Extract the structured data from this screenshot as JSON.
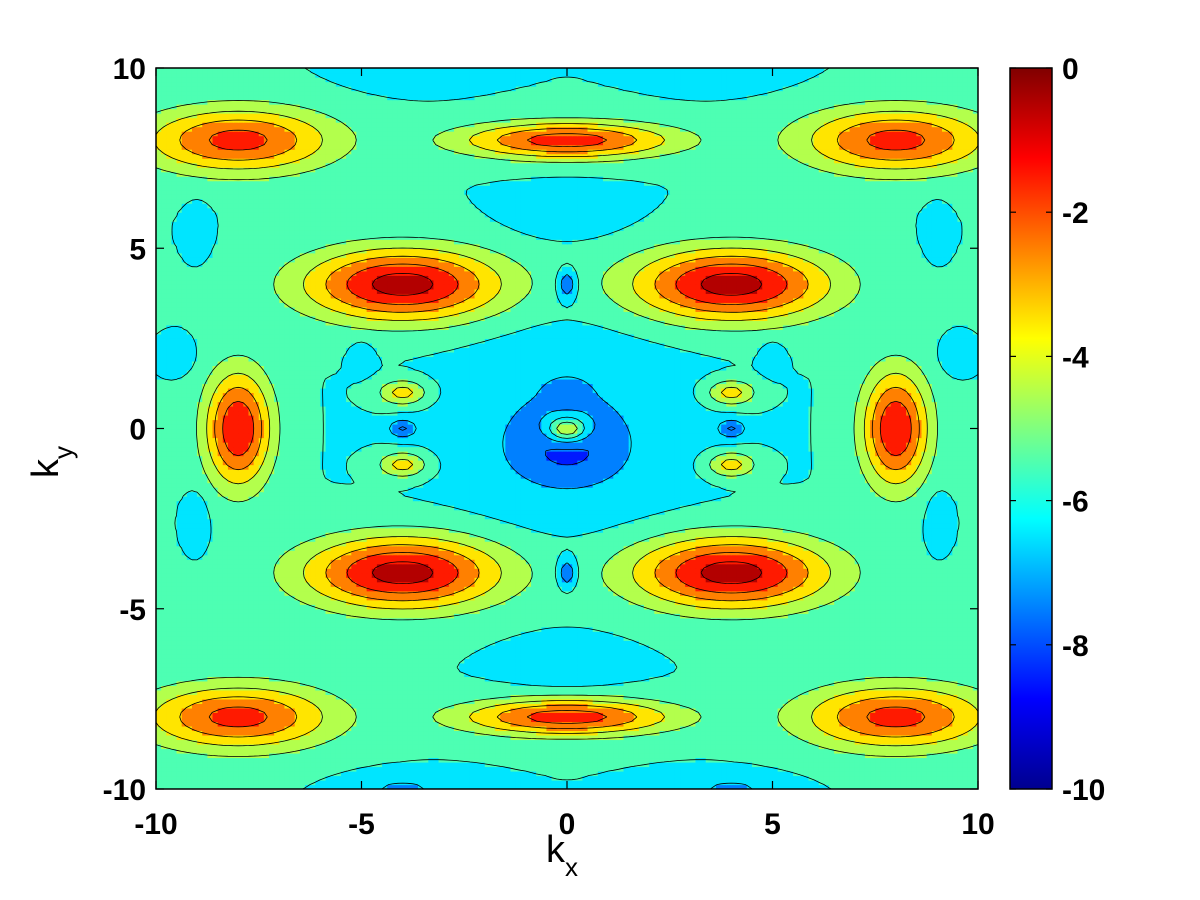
{
  "chart_data": {
    "type": "heatmap",
    "subtype": "filled-contour",
    "title": "",
    "xlabel": "k",
    "xlabel_subscript": "x",
    "ylabel": "k",
    "ylabel_subscript": "y",
    "xlim": [
      -10,
      10
    ],
    "ylim": [
      -10,
      10
    ],
    "x_ticks": [
      -10,
      -5,
      0,
      5,
      10
    ],
    "y_ticks": [
      -10,
      -5,
      0,
      5,
      10
    ],
    "x_tick_labels": [
      "-10",
      "-5",
      "0",
      "5",
      "10"
    ],
    "y_tick_labels": [
      "-10",
      "-5",
      "0",
      "5",
      "10"
    ],
    "colorbar": {
      "colormap": "jet",
      "range": [
        -10,
        0
      ],
      "ticks": [
        0,
        -2,
        -4,
        -6,
        -8,
        -10
      ],
      "tick_labels": [
        "0",
        "-2",
        "-4",
        "-6",
        "-8",
        "-10"
      ]
    },
    "contour_levels": [
      -10,
      -9,
      -8,
      -7,
      -6,
      -5,
      -4,
      -3,
      -2,
      -1,
      0
    ],
    "background_level": -6,
    "peaks": [
      {
        "x": -8,
        "y": 8,
        "value": -1.6,
        "sx": 2.3,
        "sy": 0.9
      },
      {
        "x": 0,
        "y": 8,
        "value": -1.4,
        "sx": 2.6,
        "sy": 0.5
      },
      {
        "x": 8,
        "y": 8,
        "value": -1.6,
        "sx": 2.3,
        "sy": 0.9
      },
      {
        "x": -4,
        "y": 4,
        "value": -0.5,
        "sx": 2.4,
        "sy": 1.0
      },
      {
        "x": 4,
        "y": 4,
        "value": -0.5,
        "sx": 2.4,
        "sy": 1.0
      },
      {
        "x": -8,
        "y": 0,
        "value": -1.0,
        "sx": 0.8,
        "sy": 1.6
      },
      {
        "x": 8,
        "y": 0,
        "value": -1.0,
        "sx": 0.8,
        "sy": 1.6
      },
      {
        "x": -4,
        "y": -4,
        "value": -0.5,
        "sx": 2.4,
        "sy": 1.0
      },
      {
        "x": 4,
        "y": -4,
        "value": -0.5,
        "sx": 2.4,
        "sy": 1.0
      },
      {
        "x": -8,
        "y": -8,
        "value": -1.6,
        "sx": 2.3,
        "sy": 0.9
      },
      {
        "x": 0,
        "y": -8,
        "value": -1.4,
        "sx": 2.6,
        "sy": 0.5
      },
      {
        "x": 8,
        "y": -8,
        "value": -1.6,
        "sx": 2.3,
        "sy": 0.9
      },
      {
        "x": -4,
        "y": 1,
        "value": -3.6,
        "sx": 0.6,
        "sy": 0.35
      },
      {
        "x": -4,
        "y": -1,
        "value": -3.6,
        "sx": 0.6,
        "sy": 0.35
      },
      {
        "x": 4,
        "y": 1,
        "value": -3.6,
        "sx": 0.6,
        "sy": 0.35
      },
      {
        "x": 4,
        "y": -1,
        "value": -3.6,
        "sx": 0.6,
        "sy": 0.35
      },
      {
        "x": 0,
        "y": 0,
        "value": -4.2,
        "sx": 0.5,
        "sy": 0.35
      }
    ],
    "troughs": [
      {
        "x": 0,
        "y": 0,
        "value": -7.2,
        "sx": 2.6,
        "sy": 2.4
      },
      {
        "x": 0,
        "y": -0.6,
        "value": -8.3,
        "sx": 1.1,
        "sy": 0.8
      },
      {
        "x": 0,
        "y": 1.0,
        "value": -8.0,
        "sx": 0.4,
        "sy": 0.3
      },
      {
        "x": 0,
        "y": 4,
        "value": -8.6,
        "sx": 0.25,
        "sy": 0.45
      },
      {
        "x": 0,
        "y": -4,
        "value": -8.6,
        "sx": 0.25,
        "sy": 0.45
      },
      {
        "x": -4,
        "y": 0,
        "value": -8.2,
        "sx": 0.35,
        "sy": 0.25
      },
      {
        "x": 4,
        "y": 0,
        "value": -8.2,
        "sx": 0.35,
        "sy": 0.25
      },
      {
        "x": 0,
        "y": 6,
        "value": -7.0,
        "sx": 1.2,
        "sy": 0.6
      },
      {
        "x": 0,
        "y": -6.5,
        "value": -7.0,
        "sx": 1.2,
        "sy": 0.6
      },
      {
        "x": -9.4,
        "y": 2,
        "value": -7.0,
        "sx": 0.3,
        "sy": 0.4
      },
      {
        "x": 9.4,
        "y": 2,
        "value": -7.0,
        "sx": 0.3,
        "sy": 0.4
      },
      {
        "x": -5,
        "y": 2,
        "value": -7.0,
        "sx": 0.25,
        "sy": 0.4
      },
      {
        "x": 5,
        "y": 2,
        "value": -7.0,
        "sx": 0.25,
        "sy": 0.4
      },
      {
        "x": -9,
        "y": 5.5,
        "value": -7.0,
        "sx": 0.25,
        "sy": 0.6
      },
      {
        "x": 9,
        "y": 5.5,
        "value": -7.0,
        "sx": 0.25,
        "sy": 0.6
      },
      {
        "x": -9,
        "y": -2.5,
        "value": -7.0,
        "sx": 0.25,
        "sy": 0.7
      },
      {
        "x": 9,
        "y": -2.5,
        "value": -7.0,
        "sx": 0.25,
        "sy": 0.7
      },
      {
        "x": -4,
        "y": 10,
        "value": -7.0,
        "sx": 1.2,
        "sy": 0.5
      },
      {
        "x": 4,
        "y": 10,
        "value": -7.0,
        "sx": 1.2,
        "sy": 0.5
      },
      {
        "x": -4,
        "y": -10,
        "value": -7.2,
        "sx": 1.2,
        "sy": 0.4
      },
      {
        "x": 4,
        "y": -10,
        "value": -7.2,
        "sx": 1.2,
        "sy": 0.4
      }
    ]
  }
}
